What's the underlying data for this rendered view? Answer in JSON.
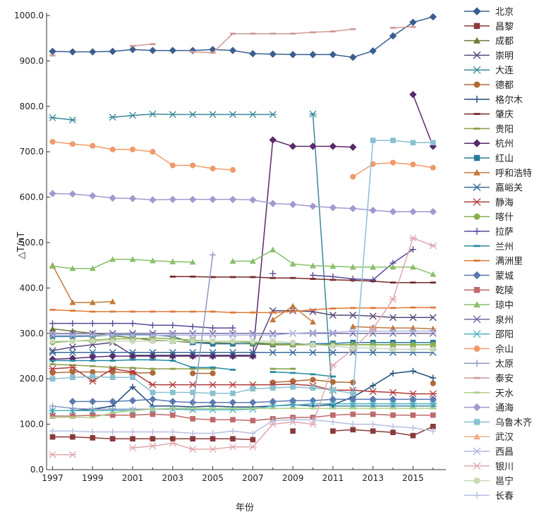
{
  "chart_data": {
    "type": "line",
    "title": "",
    "xlabel": "年份",
    "ylabel": "△T/nT",
    "xlim": [
      1996.7,
      2016.5
    ],
    "ylim": [
      0,
      1000
    ],
    "x_ticks": [
      1997,
      1999,
      2001,
      2003,
      2005,
      2007,
      2009,
      2011,
      2013,
      2015
    ],
    "x_tick_labels": [
      "1997",
      "1999",
      "2001",
      "2003",
      "2005",
      "2007",
      "2009",
      "2011",
      "2013",
      "2015"
    ],
    "y_ticks": [
      0,
      100,
      200,
      300,
      400,
      500,
      600,
      700,
      800,
      900,
      1000
    ],
    "y_tick_labels": [
      "0.0",
      "100.0",
      "200.0",
      "300.0",
      "400.0",
      "500.0",
      "600.0",
      "700.0",
      "800.0",
      "900.0",
      "1000.0"
    ],
    "grid": false,
    "legend_position": "right",
    "x": [
      1997,
      1998,
      1999,
      2000,
      2001,
      2002,
      2003,
      2004,
      2005,
      2006,
      2007,
      2008,
      2009,
      2010,
      2011,
      2012,
      2013,
      2014,
      2015,
      2016
    ],
    "series": [
      {
        "name": "北京",
        "color": "#3a5f8f",
        "marker": "diamond",
        "values": [
          921,
          920,
          920,
          921,
          925,
          923,
          923,
          923,
          925,
          923,
          916,
          915,
          914,
          914,
          914,
          908,
          922,
          955,
          985,
          997
        ]
      },
      {
        "name": "昌黎",
        "color": "#8b3a3a",
        "marker": "square",
        "values": [
          72,
          72,
          70,
          68,
          68,
          68,
          68,
          68,
          68,
          68,
          66,
          null,
          85,
          null,
          85,
          88,
          85,
          82,
          75,
          95
        ]
      },
      {
        "name": "成都",
        "color": "#6b7a3a",
        "marker": "triangle",
        "values": [
          310,
          305,
          300,
          295,
          290,
          285,
          283,
          280,
          280,
          278,
          277,
          275,
          275,
          275,
          275,
          275,
          275,
          275,
          275,
          275
        ]
      },
      {
        "name": "崇明",
        "color": "#5a4a7a",
        "marker": "x",
        "values": [
          262,
          270,
          275,
          280,
          252,
          252,
          252,
          252,
          252,
          252,
          252,
          350,
          350,
          348,
          340,
          340,
          338,
          335,
          335,
          335
        ]
      },
      {
        "name": "大连",
        "color": "#3a8a9a",
        "marker": "asterisk",
        "values": [
          775,
          770,
          null,
          776,
          780,
          783,
          782,
          782,
          782,
          782,
          782,
          782,
          null,
          783,
          140,
          140,
          140,
          140,
          140,
          140
        ]
      },
      {
        "name": "德都",
        "color": "#b06a3a",
        "marker": "circle",
        "values": [
          213,
          215,
          215,
          215,
          213,
          213,
          null,
          212,
          212,
          null,
          null,
          192,
          195,
          198,
          193,
          192,
          null,
          null,
          null,
          190
        ]
      },
      {
        "name": "格尔木",
        "color": "#1f4a7a",
        "marker": "plus",
        "values": [
          130,
          130,
          133,
          140,
          182,
          140,
          140,
          138,
          140,
          138,
          138,
          140,
          143,
          140,
          143,
          160,
          185,
          212,
          217,
          202
        ]
      },
      {
        "name": "肇庆",
        "color": "#7a2a2a",
        "marker": "dash",
        "values": [
          null,
          null,
          null,
          null,
          null,
          null,
          425,
          425,
          424,
          424,
          424,
          422,
          422,
          420,
          418,
          417,
          415,
          412,
          412,
          412
        ]
      },
      {
        "name": "贵阳",
        "color": "#8aa04a",
        "marker": "dash",
        "values": [
          232,
          230,
          228,
          225,
          224,
          222,
          222,
          222,
          222,
          null,
          null,
          222,
          222,
          null,
          null,
          null,
          null,
          null,
          null,
          null
        ]
      },
      {
        "name": "杭州",
        "color": "#5a2a6a",
        "marker": "diamond",
        "values": [
          243,
          245,
          248,
          250,
          250,
          250,
          250,
          250,
          250,
          250,
          250,
          726,
          712,
          712,
          712,
          710,
          null,
          null,
          826,
          712
        ]
      },
      {
        "name": "红山",
        "color": "#2a7a9a",
        "marker": "square",
        "values": [
          293,
          293,
          294,
          297,
          297,
          297,
          293,
          280,
          277,
          277,
          278,
          278,
          277,
          277,
          278,
          280,
          280,
          280,
          280,
          280
        ]
      },
      {
        "name": "呼和浩特",
        "color": "#c07a3a",
        "marker": "triangle",
        "values": [
          450,
          368,
          368,
          370,
          null,
          null,
          null,
          null,
          null,
          null,
          null,
          330,
          360,
          325,
          null,
          315,
          313,
          312,
          312,
          310
        ]
      },
      {
        "name": "嘉峪关",
        "color": "#3a6a9a",
        "marker": "x",
        "values": [
          258,
          258,
          258,
          258,
          258,
          258,
          258,
          258,
          258,
          258,
          258,
          258,
          258,
          258,
          258,
          258,
          258,
          258,
          258,
          258
        ]
      },
      {
        "name": "静海",
        "color": "#b03a3a",
        "marker": "asterisk",
        "values": [
          222,
          225,
          195,
          222,
          215,
          187,
          187,
          187,
          187,
          187,
          187,
          187,
          188,
          185,
          175,
          175,
          172,
          170,
          167,
          167
        ]
      },
      {
        "name": "喀什",
        "color": "#8ab04a",
        "marker": "circle",
        "values": [
          280,
          283,
          285,
          288,
          288,
          290,
          288,
          285,
          283,
          282,
          280,
          278,
          275,
          275,
          275,
          275,
          275,
          275,
          275,
          275
        ]
      },
      {
        "name": "拉萨",
        "color": "#5a4a9a",
        "marker": "plus",
        "values": [
          322,
          322,
          322,
          322,
          322,
          318,
          318,
          315,
          312,
          312,
          null,
          432,
          null,
          428,
          425,
          420,
          418,
          455,
          485,
          null
        ]
      },
      {
        "name": "兰州",
        "color": "#2a8aa0",
        "marker": "dash",
        "values": [
          240,
          240,
          240,
          240,
          242,
          242,
          240,
          225,
          225,
          220,
          null,
          215,
          213,
          210,
          205,
          null,
          null,
          null,
          null,
          null
        ]
      },
      {
        "name": "满洲里",
        "color": "#e07a3a",
        "marker": "dash",
        "values": [
          352,
          350,
          348,
          348,
          348,
          348,
          348,
          348,
          348,
          346,
          346,
          346,
          348,
          352,
          355,
          356,
          356,
          356,
          357,
          357
        ]
      },
      {
        "name": "蒙城",
        "color": "#5a7ab0",
        "marker": "diamond",
        "values": [
          null,
          150,
          150,
          150,
          152,
          155,
          150,
          148,
          148,
          148,
          148,
          150,
          152,
          152,
          155,
          155,
          155,
          155,
          155,
          155
        ]
      },
      {
        "name": "乾陵",
        "color": "#c06a6a",
        "marker": "square",
        "values": [
          118,
          118,
          120,
          120,
          120,
          122,
          120,
          112,
          110,
          110,
          108,
          112,
          115,
          115,
          120,
          122,
          122,
          120,
          120,
          120
        ]
      },
      {
        "name": "琼中",
        "color": "#8ac06a",
        "marker": "triangle",
        "values": [
          448,
          443,
          443,
          463,
          463,
          460,
          458,
          457,
          null,
          459,
          459,
          484,
          453,
          449,
          448,
          446,
          446,
          446,
          446,
          430
        ]
      },
      {
        "name": "泉州",
        "color": "#7a6aa0",
        "marker": "x",
        "values": [
          300,
          300,
          300,
          300,
          300,
          300,
          300,
          300,
          300,
          300,
          300,
          300,
          300,
          300,
          300,
          300,
          300,
          300,
          300,
          300
        ]
      },
      {
        "name": "邵阳",
        "color": "#4ab0c0",
        "marker": "asterisk",
        "values": [
          130,
          130,
          130,
          130,
          130,
          133,
          133,
          132,
          132,
          132,
          133,
          140,
          142,
          145,
          145,
          145,
          145,
          145,
          145,
          145
        ]
      },
      {
        "name": "佘山",
        "color": "#f09a6a",
        "marker": "circle",
        "values": [
          722,
          717,
          713,
          705,
          705,
          700,
          670,
          670,
          663,
          660,
          null,
          null,
          null,
          null,
          null,
          645,
          673,
          676,
          672,
          665
        ]
      },
      {
        "name": "太原",
        "color": "#8a9ac0",
        "marker": "plus",
        "values": [
          140,
          135,
          133,
          133,
          133,
          133,
          135,
          135,
          473,
          null,
          null,
          null,
          null,
          null,
          null,
          null,
          null,
          null,
          null,
          null
        ]
      },
      {
        "name": "泰安",
        "color": "#d09a9a",
        "marker": "dash",
        "values": [
          912,
          null,
          null,
          null,
          933,
          937,
          null,
          920,
          918,
          960,
          960,
          960,
          960,
          963,
          965,
          970,
          null,
          973,
          975,
          null
        ]
      },
      {
        "name": "天水",
        "color": "#b0d08a",
        "marker": "dash",
        "values": [
          115,
          115,
          115,
          125,
          130,
          133,
          135,
          135,
          135,
          135,
          135,
          135,
          135,
          135,
          135,
          135,
          135,
          135,
          135,
          135
        ]
      },
      {
        "name": "通海",
        "color": "#a09ad0",
        "marker": "diamond",
        "values": [
          608,
          607,
          603,
          598,
          597,
          594,
          595,
          595,
          595,
          595,
          594,
          586,
          584,
          580,
          577,
          575,
          571,
          568,
          568,
          568
        ]
      },
      {
        "name": "乌鲁木齐",
        "color": "#8ac0d0",
        "marker": "square",
        "values": [
          200,
          203,
          205,
          203,
          203,
          170,
          170,
          170,
          168,
          168,
          178,
          180,
          182,
          180,
          175,
          168,
          725,
          725,
          720,
          720
        ]
      },
      {
        "name": "武汉",
        "color": "#f0b08a",
        "marker": "triangle",
        "values": null
      },
      {
        "name": "西昌",
        "color": "#b0b8e0",
        "marker": "x",
        "values": [
          296,
          296,
          296,
          296,
          296,
          296,
          296,
          296,
          296,
          296,
          296,
          296,
          300,
          302,
          302,
          305,
          305,
          305,
          305,
          305
        ]
      },
      {
        "name": "银川",
        "color": "#e0a8b0",
        "marker": "asterisk",
        "values": [
          33,
          33,
          null,
          null,
          48,
          52,
          58,
          45,
          45,
          50,
          50,
          100,
          105,
          100,
          230,
          265,
          310,
          375,
          510,
          493
        ]
      },
      {
        "name": "邕宁",
        "color": "#c8d8b8",
        "marker": "circle",
        "values": [
          283,
          283,
          283,
          283,
          283,
          283,
          283,
          283,
          283,
          283,
          283,
          283,
          280,
          275,
          272,
          268,
          268,
          265,
          265,
          265
        ]
      },
      {
        "name": "长春",
        "color": "#b8c0e0",
        "marker": "plus",
        "values": [
          85,
          85,
          83,
          83,
          83,
          83,
          83,
          80,
          80,
          85,
          80,
          108,
          110,
          110,
          105,
          100,
          100,
          95,
          92,
          85
        ]
      }
    ]
  }
}
